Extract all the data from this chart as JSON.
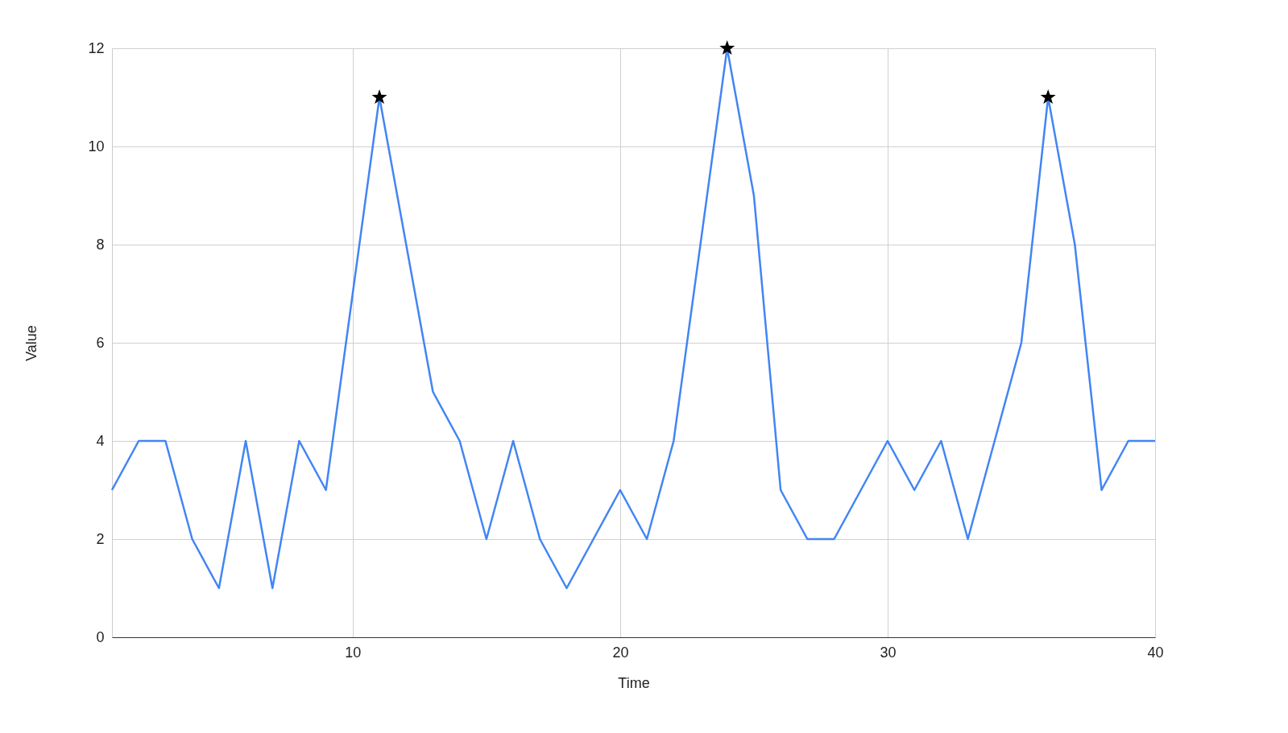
{
  "chart_data": {
    "type": "line",
    "xlabel": "Time",
    "ylabel": "Value",
    "xlim": [
      1,
      40
    ],
    "xticks": [
      10,
      20,
      30,
      40
    ],
    "ylim": [
      0,
      12
    ],
    "yticks": [
      0,
      2,
      4,
      6,
      8,
      10,
      12
    ],
    "grid": true,
    "series": [
      {
        "color": "#4285f4",
        "marker": "none",
        "x": [
          1,
          2,
          3,
          4,
          5,
          6,
          7,
          8,
          9,
          10,
          11,
          12,
          13,
          14,
          15,
          16,
          17,
          18,
          19,
          20,
          21,
          22,
          23,
          24,
          25,
          26,
          27,
          28,
          29,
          30,
          31,
          32,
          33,
          34,
          35,
          36,
          37,
          38,
          39,
          40
        ],
        "values": [
          3,
          4,
          4,
          2,
          1,
          4,
          1,
          4,
          3,
          7,
          11,
          8,
          5,
          4,
          2,
          4,
          2,
          1,
          2,
          3,
          2,
          4,
          8,
          12,
          9,
          3,
          2,
          2,
          3,
          4,
          3,
          4,
          2,
          4,
          6,
          11,
          8,
          3,
          4,
          4
        ]
      },
      {
        "type": "scatter",
        "color": "#000000",
        "marker": "star",
        "x": [
          11,
          24,
          36
        ],
        "values": [
          11,
          12,
          11
        ]
      }
    ]
  }
}
